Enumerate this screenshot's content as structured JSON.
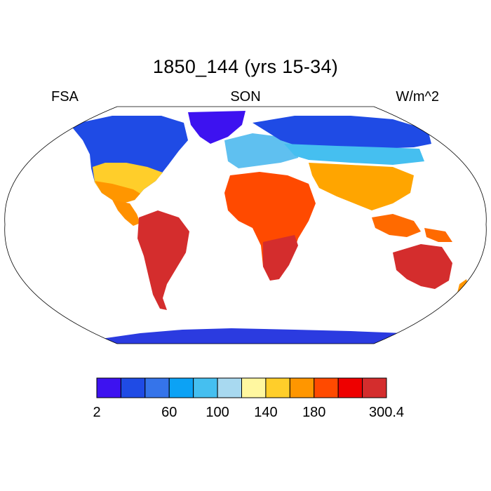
{
  "figure": {
    "title": "1850_144 (yrs 15-34)",
    "left_label": "FSA",
    "center_label": "SON",
    "right_label": "W/m^2"
  },
  "map": {
    "projection": "robinson",
    "regions": [
      {
        "name": "greenland",
        "color": "#3d12f0"
      },
      {
        "name": "north-america",
        "color": "#1f4be5"
      },
      {
        "name": "central-america",
        "color": "#ff9000"
      },
      {
        "name": "south-america",
        "color": "#d42d2d"
      },
      {
        "name": "europe",
        "color": "#5fc0f0"
      },
      {
        "name": "north-asia",
        "color": "#1f4be5"
      },
      {
        "name": "africa",
        "color": "#ff4a00"
      },
      {
        "name": "south-asia",
        "color": "#ffa500"
      },
      {
        "name": "southeast-asia",
        "color": "#ff6a00"
      },
      {
        "name": "australia",
        "color": "#d42d2d"
      },
      {
        "name": "antarctica",
        "color": "#2b3be0"
      }
    ]
  },
  "colorbar": {
    "colors": [
      "#3d12f0",
      "#1f4be5",
      "#3574ea",
      "#0ca2f5",
      "#45bff0",
      "#a8d9f0",
      "#fff7a0",
      "#ffce2a",
      "#ff9600",
      "#ff4a00",
      "#ee0000",
      "#d42d2d"
    ],
    "tick_labels": [
      {
        "text": "2",
        "index": 0
      },
      {
        "text": "60",
        "index": 3
      },
      {
        "text": "100",
        "index": 5
      },
      {
        "text": "140",
        "index": 7
      },
      {
        "text": "180",
        "index": 9
      },
      {
        "text": "300.4",
        "index": 12
      }
    ]
  }
}
